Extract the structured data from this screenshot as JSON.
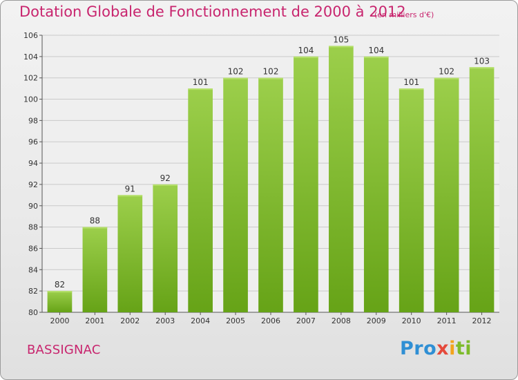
{
  "chart_data": {
    "type": "bar",
    "title": "Dotation Globale de Fonctionnement de 2000 à 2012",
    "subtitle": "(en milliers d'€)",
    "categories": [
      "2000",
      "2001",
      "2002",
      "2003",
      "2004",
      "2005",
      "2006",
      "2007",
      "2008",
      "2009",
      "2010",
      "2011",
      "2012"
    ],
    "values": [
      82,
      88,
      91,
      92,
      101,
      102,
      102,
      104,
      105,
      104,
      101,
      102,
      103
    ],
    "ylim": [
      80,
      106
    ],
    "yticks": [
      80,
      82,
      84,
      86,
      88,
      90,
      92,
      94,
      96,
      98,
      100,
      102,
      104,
      106
    ],
    "grid": true,
    "bar_color_light": "#9ccf4b",
    "bar_color_dark": "#66a317"
  },
  "footer": {
    "place": "BASSIGNAC"
  },
  "logo": {
    "part1": "Pro",
    "part2": "x",
    "part3": "i",
    "part4": "ti"
  }
}
